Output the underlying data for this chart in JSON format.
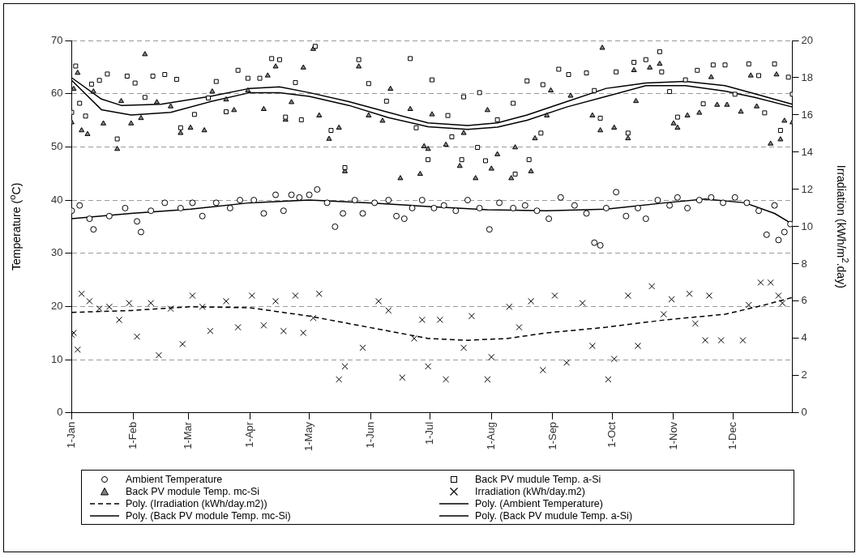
{
  "chart_data": {
    "type": "scatter",
    "ylabel": "Temperature ($^{o}$C)",
    "y2label": "Irradiation (kWh/m$^{2}$.day)",
    "xlim": [
      "--01-01",
      "--12-31"
    ],
    "xticks": [
      {
        "value": "--01-01",
        "label": "1-Jan"
      },
      {
        "value": "--02-01",
        "label": "1-Feb"
      },
      {
        "value": "--03-01",
        "label": "1-Mar"
      },
      {
        "value": "--04-01",
        "label": "1-Apr"
      },
      {
        "value": "--05-01",
        "label": "1-May"
      },
      {
        "value": "--06-01",
        "label": "1-Jun"
      },
      {
        "value": "--07-01",
        "label": "1-Jul"
      },
      {
        "value": "--08-01",
        "label": "1-Aug"
      },
      {
        "value": "--09-01",
        "label": "1-Sep"
      },
      {
        "value": "--10-01",
        "label": "1-Oct"
      },
      {
        "value": "--11-01",
        "label": "1-Nov"
      },
      {
        "value": "--12-01",
        "label": "1-Dec"
      }
    ],
    "ylim": [
      0,
      70
    ],
    "yticks": [
      0,
      10,
      20,
      30,
      40,
      50,
      60,
      70
    ],
    "y2lim": [
      0,
      20
    ],
    "y2ticks": [
      0,
      2,
      4,
      6,
      8,
      10,
      12,
      14,
      16,
      18,
      20
    ],
    "grid": "y",
    "legend": "bottom",
    "series": [
      {
        "name": "Ambient Temperature",
        "type": "scatter",
        "marker": "circle",
        "color": "#000000",
        "x": [
          "--01-01",
          "--01-05",
          "--01-10",
          "--01-12",
          "--01-20",
          "--01-28",
          "--02-03",
          "--02-05",
          "--02-10",
          "--02-17",
          "--02-25",
          "--03-03",
          "--03-08",
          "--03-15",
          "--03-22",
          "--03-27",
          "--04-03",
          "--04-08",
          "--04-14",
          "--04-18",
          "--04-22",
          "--04-26",
          "--05-01",
          "--05-05",
          "--05-10",
          "--05-14",
          "--05-18",
          "--05-24",
          "--05-28",
          "--06-03",
          "--06-10",
          "--06-14",
          "--06-18",
          "--06-22",
          "--06-27",
          "--07-03",
          "--07-08",
          "--07-14",
          "--07-20",
          "--07-26",
          "--07-31",
          "--08-05",
          "--08-12",
          "--08-18",
          "--08-24",
          "--08-30",
          "--09-05",
          "--09-12",
          "--09-18",
          "--09-22",
          "--09-25",
          "--09-28",
          "--10-03",
          "--10-08",
          "--10-14",
          "--10-18",
          "--10-24",
          "--10-30",
          "--11-03",
          "--11-08",
          "--11-14",
          "--11-20",
          "--11-26",
          "--12-02",
          "--12-08",
          "--12-14",
          "--12-18",
          "--12-22",
          "--12-24",
          "--12-27",
          "--12-30"
        ],
        "values": [
          38,
          39,
          36.5,
          34.5,
          37,
          38.5,
          36,
          34,
          38,
          39.5,
          38.5,
          39.5,
          37,
          39.5,
          38.5,
          40,
          40,
          37.5,
          41,
          38,
          41,
          40.5,
          41,
          42,
          39.5,
          35,
          37.5,
          40,
          37.5,
          39.5,
          40,
          37,
          36.5,
          38.5,
          40,
          38.5,
          39,
          38,
          40,
          38.5,
          34.5,
          39.5,
          38.5,
          39,
          38,
          36.5,
          40.5,
          39,
          37.5,
          32,
          31.5,
          38.5,
          41.5,
          37,
          38.5,
          36.5,
          40,
          39,
          40.5,
          38.5,
          40,
          40.5,
          39.5,
          40.5,
          39.5,
          38,
          33.5,
          39,
          32.5,
          34,
          35.5
        ]
      },
      {
        "name": "Back PV mudule Temp. a-Si",
        "type": "scatter",
        "marker": "square",
        "color": "#000000",
        "x": [
          "--01-01",
          "--01-03",
          "--01-05",
          "--01-08",
          "--01-11",
          "--01-15",
          "--01-19",
          "--01-24",
          "--01-29",
          "--02-02",
          "--02-07",
          "--02-11",
          "--02-17",
          "--02-23",
          "--02-25",
          "--03-04",
          "--03-11",
          "--03-15",
          "--03-20",
          "--03-26",
          "--03-31",
          "--04-06",
          "--04-12",
          "--04-16",
          "--04-19",
          "--04-24",
          "--04-27",
          "--05-04",
          "--05-12",
          "--05-19",
          "--05-26",
          "--05-31",
          "--06-09",
          "--06-21",
          "--06-24",
          "--06-30",
          "--07-02",
          "--07-10",
          "--07-12",
          "--07-17",
          "--07-18",
          "--07-25",
          "--07-26",
          "--07-29",
          "--08-04",
          "--08-12",
          "--08-13",
          "--08-19",
          "--08-20",
          "--08-26",
          "--08-27",
          "--09-04",
          "--09-09",
          "--09-18",
          "--09-22",
          "--09-25",
          "--10-03",
          "--10-09",
          "--10-12",
          "--10-18",
          "--10-25",
          "--10-26",
          "--10-30",
          "--11-03",
          "--11-07",
          "--11-13",
          "--11-16",
          "--11-21",
          "--11-27",
          "--12-02",
          "--12-09",
          "--12-14",
          "--12-17",
          "--12-22",
          "--12-25",
          "--12-29",
          "--12-31"
        ],
        "values": [
          56.5,
          65.2,
          58.2,
          55.8,
          61.8,
          62.5,
          63.7,
          51.5,
          63.3,
          62,
          59.3,
          63.3,
          63.6,
          62.7,
          53.6,
          56.1,
          59.2,
          62.3,
          56.6,
          64.4,
          62.9,
          62.9,
          66.6,
          66.4,
          55.6,
          62.1,
          55.1,
          68.9,
          53.1,
          46.1,
          66.4,
          61.9,
          58.6,
          66.6,
          53.6,
          47.6,
          62.6,
          55.9,
          51.9,
          47.6,
          59.4,
          49.9,
          60.2,
          47.4,
          55.1,
          58.2,
          44.9,
          62.4,
          47.6,
          52.6,
          61.7,
          64.6,
          63.6,
          63.9,
          60.6,
          55.4,
          64.1,
          52.6,
          65.9,
          66.4,
          67.9,
          64.1,
          60.4,
          55.6,
          62.6,
          64.4,
          58.1,
          65.4,
          65.4,
          59.9,
          65.6,
          63.4,
          56.4,
          65.6,
          53.1,
          63.1,
          59.9
        ]
      },
      {
        "name": "Back PV module Temp. mc-Si",
        "type": "scatter",
        "marker": "triangle",
        "color": "#808080",
        "x": [
          "--01-01",
          "--01-02",
          "--01-04",
          "--01-06",
          "--01-09",
          "--01-12",
          "--01-17",
          "--01-24",
          "--01-26",
          "--01-31",
          "--02-05",
          "--02-07",
          "--02-13",
          "--02-20",
          "--02-25",
          "--03-02",
          "--03-09",
          "--03-13",
          "--03-20",
          "--03-24",
          "--03-31",
          "--04-08",
          "--04-10",
          "--04-14",
          "--04-19",
          "--04-22",
          "--04-28",
          "--05-03",
          "--05-06",
          "--05-11",
          "--05-16",
          "--05-19",
          "--05-26",
          "--05-31",
          "--06-07",
          "--06-11",
          "--06-16",
          "--06-21",
          "--06-26",
          "--06-28",
          "--06-30",
          "--07-02",
          "--07-09",
          "--07-16",
          "--07-18",
          "--07-24",
          "--07-30",
          "--08-01",
          "--08-04",
          "--08-11",
          "--08-13",
          "--08-21",
          "--08-23",
          "--08-29",
          "--08-31",
          "--09-10",
          "--09-21",
          "--09-25",
          "--09-26",
          "--10-02",
          "--10-09",
          "--10-12",
          "--10-13",
          "--10-20",
          "--10-25",
          "--11-01",
          "--11-03",
          "--11-08",
          "--11-14",
          "--11-20",
          "--11-23",
          "--11-28",
          "--12-05",
          "--12-10",
          "--12-13",
          "--12-20",
          "--12-23",
          "--12-25",
          "--12-27",
          "--12-31"
        ],
        "values": [
          54.6,
          60.9,
          63.9,
          53.1,
          52.4,
          60.4,
          54.4,
          49.6,
          58.6,
          54.4,
          55.4,
          67.4,
          58.4,
          57.6,
          52.6,
          53.6,
          53.1,
          60.4,
          58.9,
          56.9,
          60.6,
          57.1,
          63.4,
          65.1,
          55.1,
          58.4,
          64.9,
          68.4,
          55.9,
          51.5,
          53.6,
          45.4,
          65.1,
          55.9,
          54.9,
          60.9,
          44.1,
          57.1,
          44.9,
          50.1,
          49.6,
          56.1,
          50.4,
          46.4,
          52.6,
          44.1,
          56.9,
          45.9,
          48.6,
          44.1,
          49.9,
          45.4,
          51.6,
          55.9,
          60.6,
          59.6,
          55.9,
          53.1,
          68.6,
          53.6,
          51.6,
          64.4,
          58.6,
          64.9,
          65.6,
          54.4,
          53.6,
          55.9,
          56.4,
          63.1,
          57.9,
          57.9,
          56.6,
          63.4,
          57.6,
          50.6,
          63.6,
          51.4,
          54.9,
          54.6
        ]
      },
      {
        "name": "Irradiation (kWh/day.m2)",
        "type": "scatter",
        "marker": "cross",
        "color": "#000000",
        "axis": "y2",
        "x": [
          "--01-01",
          "--01-02",
          "--01-04",
          "--01-06",
          "--01-10",
          "--01-15",
          "--01-20",
          "--01-25",
          "--01-30",
          "--02-03",
          "--02-10",
          "--02-14",
          "--02-20",
          "--02-26",
          "--03-03",
          "--03-08",
          "--03-12",
          "--03-20",
          "--03-26",
          "--04-02",
          "--04-08",
          "--04-14",
          "--04-18",
          "--04-24",
          "--04-28",
          "--05-03",
          "--05-06",
          "--05-16",
          "--05-19",
          "--05-28",
          "--06-05",
          "--06-10",
          "--06-17",
          "--06-23",
          "--06-27",
          "--06-30",
          "--07-06",
          "--07-09",
          "--07-18",
          "--07-22",
          "--07-30",
          "--08-01",
          "--08-10",
          "--08-15",
          "--08-21",
          "--08-27",
          "--09-02",
          "--09-08",
          "--09-16",
          "--09-21",
          "--09-29",
          "--10-02",
          "--10-09",
          "--10-14",
          "--10-21",
          "--10-27",
          "--10-31",
          "--11-09",
          "--11-12",
          "--11-17",
          "--11-19",
          "--11-25",
          "--12-06",
          "--12-09",
          "--12-15",
          "--12-20",
          "--12-24",
          "--12-26"
        ],
        "values": [
          4.2,
          4.3,
          3.4,
          6.4,
          6.0,
          5.6,
          5.7,
          5.0,
          5.9,
          4.1,
          5.9,
          3.1,
          5.6,
          3.7,
          6.3,
          5.7,
          4.4,
          6.0,
          4.6,
          6.3,
          4.7,
          6.0,
          4.4,
          6.3,
          4.3,
          5.1,
          6.4,
          1.8,
          2.5,
          3.5,
          6.0,
          5.5,
          1.9,
          4.0,
          5.0,
          2.5,
          5.0,
          1.8,
          3.5,
          5.2,
          1.8,
          3.0,
          5.7,
          4.6,
          6.0,
          2.3,
          6.3,
          2.7,
          5.9,
          3.6,
          1.8,
          2.9,
          6.3,
          3.6,
          6.8,
          5.3,
          6.1,
          6.4,
          4.8,
          3.9,
          6.3,
          3.9,
          3.9,
          5.8,
          7.0,
          7.0,
          6.3,
          5.9
        ]
      },
      {
        "name": "Poly. (Irradiation (kWh/day.m2))",
        "type": "line",
        "marker": "none",
        "line_style": "dashed",
        "color": "#000000",
        "axis": "y2",
        "x": [
          "--01-01",
          "--01-31",
          "--03-02",
          "--04-01",
          "--05-01",
          "--05-31",
          "--06-30",
          "--07-20",
          "--08-09",
          "--08-29",
          "--09-28",
          "--10-28",
          "--11-27",
          "--12-17",
          "--12-31"
        ],
        "values": [
          5.4,
          5.5,
          5.7,
          5.65,
          5.2,
          4.6,
          4.0,
          3.9,
          4.0,
          4.3,
          4.6,
          5.0,
          5.3,
          5.8,
          6.2
        ]
      },
      {
        "name": "Poly. (Ambient Temperature)",
        "type": "line",
        "marker": "none",
        "line_style": "solid",
        "color": "#000000",
        "x": [
          "--01-01",
          "--01-31",
          "--03-02",
          "--04-01",
          "--05-01",
          "--05-31",
          "--06-30",
          "--07-30",
          "--08-29",
          "--09-28",
          "--10-28",
          "--11-17",
          "--12-07",
          "--12-22",
          "--12-31"
        ],
        "values": [
          36.5,
          37.5,
          38.3,
          39.5,
          40,
          39.5,
          38.8,
          38.2,
          38,
          38.3,
          39.5,
          40.2,
          39.5,
          37.5,
          35.5
        ]
      },
      {
        "name": "Poly. (Back PV module Temp. mc-Si)",
        "type": "line",
        "marker": "none",
        "line_style": "solid",
        "color": "#000000",
        "x": [
          "--01-01",
          "--01-16",
          "--01-31",
          "--02-20",
          "--03-12",
          "--04-01",
          "--04-16",
          "--05-01",
          "--05-21",
          "--06-10",
          "--06-30",
          "--07-20",
          "--08-04",
          "--08-19",
          "--09-08",
          "--09-28",
          "--10-18",
          "--11-07",
          "--11-27",
          "--12-12",
          "--12-31"
        ],
        "values": [
          62.5,
          57,
          56,
          56.5,
          58.5,
          60.2,
          60.2,
          59.5,
          57.8,
          55.5,
          53.8,
          53.3,
          53.7,
          55,
          57.5,
          59.5,
          61.5,
          61.5,
          60.5,
          59.3,
          57.5
        ]
      },
      {
        "name": "Poly. (Back PV mudule Temp. a-Si)",
        "type": "line",
        "marker": "none",
        "line_style": "solid",
        "color": "#000000",
        "x": [
          "--01-01",
          "--01-16",
          "--01-26",
          "--02-15",
          "--03-12",
          "--04-01",
          "--04-16",
          "--05-01",
          "--05-21",
          "--06-10",
          "--06-30",
          "--07-20",
          "--08-04",
          "--08-19",
          "--09-08",
          "--09-28",
          "--10-18",
          "--11-07",
          "--11-27",
          "--12-12",
          "--12-31"
        ],
        "values": [
          63,
          59,
          57.8,
          58,
          59.5,
          61,
          61.3,
          60.2,
          58.5,
          56.5,
          54.5,
          54,
          54.5,
          56,
          58.5,
          61,
          62,
          62.3,
          61.5,
          60,
          58
        ]
      }
    ]
  }
}
